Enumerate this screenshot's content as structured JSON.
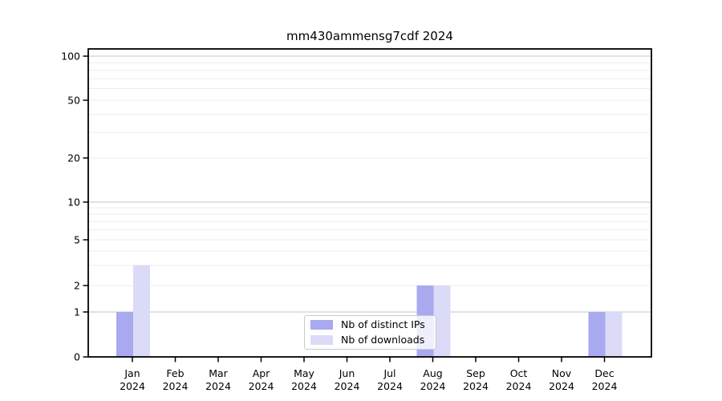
{
  "title": "mm430ammensg7cdf 2024",
  "colors": {
    "background": "#ffffff",
    "grid_minor": "#ededed",
    "grid_major": "#c6c6c6",
    "axis": "#000000",
    "text": "#000000",
    "legend_border": "#c9c9c9"
  },
  "chart_data": {
    "type": "bar",
    "title": "mm430ammensg7cdf 2024",
    "categories": [
      "Jan 2024",
      "Feb 2024",
      "Mar 2024",
      "Apr 2024",
      "May 2024",
      "Jun 2024",
      "Jul 2024",
      "Aug 2024",
      "Sep 2024",
      "Oct 2024",
      "Nov 2024",
      "Dec 2024"
    ],
    "series": [
      {
        "name": "Nb of distinct IPs",
        "color": "#a9a9f0",
        "values": [
          1,
          0,
          0,
          0,
          0,
          0,
          0,
          2,
          0,
          0,
          0,
          1
        ]
      },
      {
        "name": "Nb of downloads",
        "color": "#dbdbf8",
        "values": [
          3,
          0,
          0,
          0,
          0,
          0,
          0,
          2,
          0,
          0,
          0,
          1
        ]
      }
    ],
    "yscale": "symlog",
    "yticks": [
      0,
      1,
      2,
      5,
      10,
      20,
      50,
      100
    ],
    "ylim": [
      0,
      115
    ],
    "xlabel": "",
    "ylabel": "",
    "grid": true,
    "legend_position": "lower center"
  }
}
